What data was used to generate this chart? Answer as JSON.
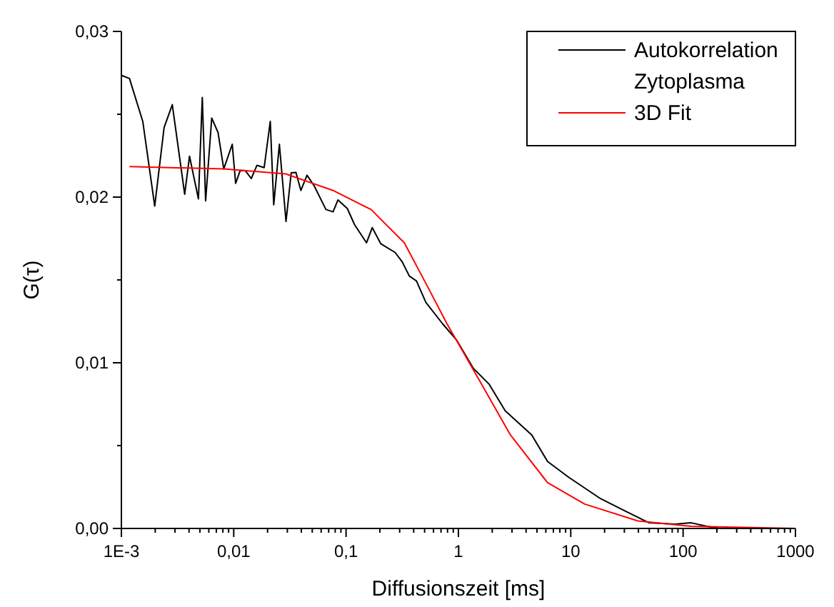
{
  "chart_data": {
    "type": "line",
    "xlabel": "Diffusionszeit [ms]",
    "ylabel": "G(τ)",
    "log": "x",
    "xlim": [
      0.001,
      1000
    ],
    "ylim": [
      0,
      0.03
    ],
    "xticks": [
      {
        "value": 0.001,
        "label": "1E-3"
      },
      {
        "value": 0.002,
        "label": null
      },
      {
        "value": 0.003,
        "label": null
      },
      {
        "value": 0.004,
        "label": null
      },
      {
        "value": 0.005,
        "label": null
      },
      {
        "value": 0.006,
        "label": null
      },
      {
        "value": 0.007,
        "label": null
      },
      {
        "value": 0.008,
        "label": null
      },
      {
        "value": 0.009,
        "label": null
      },
      {
        "value": 0.01,
        "label": "0,01"
      },
      {
        "value": 0.02,
        "label": null
      },
      {
        "value": 0.03,
        "label": null
      },
      {
        "value": 0.04,
        "label": null
      },
      {
        "value": 0.05,
        "label": null
      },
      {
        "value": 0.06,
        "label": null
      },
      {
        "value": 0.07,
        "label": null
      },
      {
        "value": 0.08,
        "label": null
      },
      {
        "value": 0.09,
        "label": null
      },
      {
        "value": 0.1,
        "label": "0,1"
      },
      {
        "value": 0.2,
        "label": null
      },
      {
        "value": 0.3,
        "label": null
      },
      {
        "value": 0.4,
        "label": null
      },
      {
        "value": 0.5,
        "label": null
      },
      {
        "value": 0.6,
        "label": null
      },
      {
        "value": 0.7,
        "label": null
      },
      {
        "value": 0.8,
        "label": null
      },
      {
        "value": 0.9,
        "label": null
      },
      1,
      {
        "value": 2,
        "label": null
      },
      {
        "value": 3,
        "label": null
      },
      {
        "value": 4,
        "label": null
      },
      {
        "value": 5,
        "label": null
      },
      {
        "value": 6,
        "label": null
      },
      {
        "value": 7,
        "label": null
      },
      {
        "value": 8,
        "label": null
      },
      {
        "value": 9,
        "label": null
      },
      10,
      {
        "value": 20,
        "label": null
      },
      {
        "value": 30,
        "label": null
      },
      {
        "value": 40,
        "label": null
      },
      {
        "value": 50,
        "label": null
      },
      {
        "value": 60,
        "label": null
      },
      {
        "value": 70,
        "label": null
      },
      {
        "value": 80,
        "label": null
      },
      {
        "value": 90,
        "label": null
      },
      100,
      {
        "value": 200,
        "label": null
      },
      {
        "value": 300,
        "label": null
      },
      {
        "value": 400,
        "label": null
      },
      {
        "value": 500,
        "label": null
      },
      {
        "value": 600,
        "label": null
      },
      {
        "value": 700,
        "label": null
      },
      {
        "value": 800,
        "label": null
      },
      {
        "value": 900,
        "label": null
      },
      1000
    ],
    "yticks": [
      {
        "value": 0,
        "label": "0,00"
      },
      {
        "value": 0.005,
        "label": null
      },
      {
        "value": 0.01,
        "label": "0,01"
      },
      {
        "value": 0.015,
        "label": null
      },
      {
        "value": 0.02,
        "label": "0,02"
      },
      {
        "value": 0.025,
        "label": null
      },
      {
        "value": 0.03,
        "label": "0,03"
      }
    ],
    "grid": false,
    "legend": "top right",
    "marker": "none",
    "line_style": "solid",
    "series": [
      {
        "name": "Autokorrelation Zytoplasma",
        "color": "#000000",
        "x": [
          0.001,
          0.00118,
          0.00155,
          0.00198,
          0.0024,
          0.00284,
          0.00366,
          0.00404,
          0.00485,
          0.00525,
          0.00562,
          0.00637,
          0.00725,
          0.00815,
          0.0097,
          0.0104,
          0.01143,
          0.01265,
          0.01433,
          0.0161,
          0.01866,
          0.02115,
          0.0227,
          0.0255,
          0.0292,
          0.0325,
          0.0358,
          0.0396,
          0.0449,
          0.0519,
          0.0662,
          0.0766,
          0.0847,
          0.1026,
          0.1189,
          0.152,
          0.171,
          0.204,
          0.273,
          0.316,
          0.366,
          0.423,
          0.513,
          0.722,
          0.968,
          1.36,
          1.88,
          2.61,
          4.49,
          6.22,
          9.62,
          18.5,
          31.9,
          49.4,
          85.1,
          118,
          163,
          215
        ],
        "values": [
          0.02735,
          0.02716,
          0.02457,
          0.01946,
          0.0242,
          0.02558,
          0.02017,
          0.02247,
          0.01989,
          0.02601,
          0.01977,
          0.02477,
          0.0239,
          0.0217,
          0.02319,
          0.02083,
          0.02161,
          0.0216,
          0.02112,
          0.02192,
          0.02178,
          0.02457,
          0.01954,
          0.02319,
          0.01853,
          0.02147,
          0.02149,
          0.0204,
          0.02132,
          0.02069,
          0.01925,
          0.01911,
          0.01983,
          0.01931,
          0.01834,
          0.01724,
          0.01816,
          0.01718,
          0.01666,
          0.01609,
          0.01523,
          0.01494,
          0.01365,
          0.01236,
          0.01135,
          0.00966,
          0.0087,
          0.0071,
          0.00565,
          0.00404,
          0.00308,
          0.00179,
          0.00099,
          0.00035,
          0.00026,
          0.00034,
          0.00013,
          0
        ]
      },
      {
        "name": "3D Fit",
        "color": "#ff0000",
        "x": [
          0.00118,
          0.00815,
          0.029,
          0.0766,
          0.167,
          0.33,
          0.54,
          0.79,
          1.17,
          1.88,
          2.9,
          6.22,
          13.3,
          39.7,
          118,
          1000
        ],
        "values": [
          0.02184,
          0.0217,
          0.0214,
          0.0204,
          0.01925,
          0.01724,
          0.01451,
          0.01236,
          0.01034,
          0.0079,
          0.00565,
          0.00276,
          0.00147,
          0.00045,
          0.00013,
          0
        ]
      }
    ]
  }
}
